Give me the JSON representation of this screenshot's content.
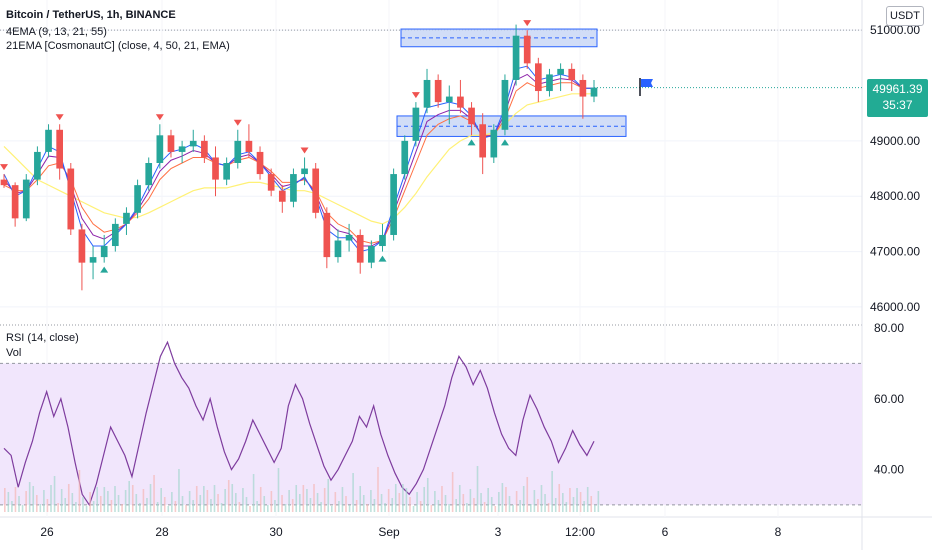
{
  "header": {
    "symbol": "Bitcoin / TetherUS, 1h, BINANCE",
    "ind1": "4EMA (9, 13, 21, 55)",
    "ind2": "21EMA [CosmonautC] (close, 4, 50, 21, EMA)",
    "ind3": "RSI (14, close)",
    "ind4": "Vol"
  },
  "currency": "USDT",
  "price_tag": {
    "value": "49961.39",
    "countdown": "35:37"
  },
  "colors": {
    "up": "#26a69a",
    "down": "#ef5350",
    "rsi_line": "#7e3c9e",
    "rsi_band": "#f1e6fc",
    "ema1": "#2962ff",
    "ema2": "#8e24aa",
    "ema3": "#ff7043",
    "ema4": "#fff176",
    "zone_fill": "#c5d5f5",
    "zone_border": "#2962ff",
    "flag": "#2962ff"
  },
  "chart_data": [
    {
      "type": "candlestick",
      "title": "Bitcoin / TetherUS, 1h, BINANCE",
      "ylim": [
        45800,
        51400
      ],
      "y_ticks": [
        "51000.00",
        "49000.00",
        "48000.00",
        "47000.00",
        "46000.00"
      ],
      "x_tick_labels": [
        "26",
        "28",
        "30",
        "Sep",
        "3",
        "12:00",
        "6",
        "8"
      ],
      "last_price": 49961.39,
      "resistance_zone": [
        50700,
        51020
      ],
      "support_zone": [
        49080,
        49450
      ],
      "candles": [
        [
          48300,
          48400,
          48150,
          48200
        ],
        [
          48200,
          48250,
          47450,
          47600
        ],
        [
          47600,
          48400,
          47550,
          48300
        ],
        [
          48300,
          48900,
          48200,
          48800
        ],
        [
          48800,
          49300,
          48700,
          49200
        ],
        [
          49200,
          49300,
          48300,
          48500
        ],
        [
          48500,
          48600,
          47300,
          47400
        ],
        [
          47400,
          47500,
          46300,
          46800
        ],
        [
          46800,
          47100,
          46500,
          46900
        ],
        [
          46900,
          47300,
          46800,
          47100
        ],
        [
          47100,
          47600,
          47000,
          47500
        ],
        [
          47500,
          47800,
          47300,
          47700
        ],
        [
          47700,
          48300,
          47600,
          48200
        ],
        [
          48200,
          48700,
          48100,
          48600
        ],
        [
          48600,
          49300,
          48500,
          49100
        ],
        [
          49100,
          49200,
          48700,
          48800
        ],
        [
          48800,
          49000,
          48600,
          48900
        ],
        [
          48900,
          49200,
          48800,
          49000
        ],
        [
          49000,
          49100,
          48600,
          48700
        ],
        [
          48700,
          48900,
          48000,
          48300
        ],
        [
          48300,
          48700,
          48200,
          48600
        ],
        [
          48600,
          49200,
          48500,
          49000
        ],
        [
          49000,
          49300,
          48700,
          48800
        ],
        [
          48800,
          48900,
          48300,
          48400
        ],
        [
          48400,
          48500,
          48000,
          48100
        ],
        [
          48100,
          48200,
          47700,
          47900
        ],
        [
          47900,
          48500,
          47800,
          48400
        ],
        [
          48400,
          48700,
          48200,
          48500
        ],
        [
          48500,
          48600,
          47600,
          47700
        ],
        [
          47700,
          47800,
          46700,
          46900
        ],
        [
          46900,
          47400,
          46800,
          47200
        ],
        [
          47200,
          47500,
          47000,
          47300
        ],
        [
          47300,
          47400,
          46600,
          46800
        ],
        [
          46800,
          47200,
          46700,
          47100
        ],
        [
          47100,
          47500,
          47000,
          47300
        ],
        [
          47300,
          48500,
          47200,
          48400
        ],
        [
          48400,
          49100,
          48300,
          49000
        ],
        [
          49000,
          49700,
          48900,
          49600
        ],
        [
          49600,
          50300,
          49500,
          50100
        ],
        [
          50100,
          50200,
          49600,
          49700
        ],
        [
          49700,
          50000,
          49300,
          49800
        ],
        [
          49800,
          50100,
          49500,
          49600
        ],
        [
          49600,
          49700,
          49100,
          49300
        ],
        [
          49300,
          49500,
          48400,
          48700
        ],
        [
          48700,
          49300,
          48600,
          49200
        ],
        [
          49200,
          50200,
          49100,
          50100
        ],
        [
          50100,
          51100,
          50000,
          50900
        ],
        [
          50900,
          51000,
          50300,
          50400
        ],
        [
          50400,
          50500,
          49700,
          49900
        ],
        [
          49900,
          50300,
          49800,
          50200
        ],
        [
          50200,
          50400,
          49900,
          50300
        ],
        [
          50300,
          50400,
          49900,
          50100
        ],
        [
          50100,
          50200,
          49400,
          49800
        ],
        [
          49800,
          50100,
          49700,
          49961
        ]
      ],
      "ema_fast": [
        48400,
        48000,
        48100,
        48500,
        48900,
        48800,
        48100,
        47400,
        47100,
        47100,
        47300,
        47500,
        47800,
        48200,
        48600,
        48800,
        48850,
        48950,
        48850,
        48600,
        48550,
        48750,
        48800,
        48600,
        48350,
        48100,
        48200,
        48350,
        48000,
        47400,
        47250,
        47250,
        47000,
        47050,
        47200,
        47800,
        48400,
        49000,
        49600,
        49650,
        49700,
        49650,
        49450,
        49050,
        49100,
        49600,
        50300,
        50350,
        50100,
        50150,
        50200,
        50150,
        49950,
        49950
      ],
      "ema_slow": [
        48200,
        48100,
        48100,
        48300,
        48550,
        48600,
        48300,
        47800,
        47500,
        47350,
        47400,
        47500,
        47700,
        47950,
        48300,
        48500,
        48600,
        48700,
        48700,
        48600,
        48550,
        48650,
        48700,
        48600,
        48450,
        48250,
        48250,
        48300,
        48100,
        47700,
        47500,
        47400,
        47200,
        47150,
        47200,
        47600,
        48100,
        48600,
        49100,
        49300,
        49400,
        49450,
        49350,
        49100,
        49100,
        49400,
        49900,
        50050,
        49950,
        50000,
        50050,
        50050,
        49950,
        49950
      ],
      "ema_55": [
        48900,
        48700,
        48500,
        48300,
        48200,
        48100,
        48000,
        47900,
        47800,
        47700,
        47650,
        47600,
        47620,
        47700,
        47800,
        47900,
        48000,
        48100,
        48150,
        48150,
        48150,
        48200,
        48250,
        48250,
        48200,
        48150,
        48100,
        48100,
        48050,
        47950,
        47850,
        47750,
        47650,
        47550,
        47500,
        47600,
        47800,
        48050,
        48350,
        48600,
        48850,
        49000,
        49100,
        49100,
        49150,
        49300,
        49500,
        49650,
        49700,
        49750,
        49800,
        49850,
        49850,
        49850
      ]
    },
    {
      "type": "line",
      "title": "RSI (14, close)",
      "ylim": [
        28,
        80
      ],
      "y_ticks": [
        "80.00",
        "60.00",
        "40.00"
      ],
      "band": [
        30,
        70
      ],
      "series": [
        {
          "values": [
            46,
            44,
            35,
            42,
            48,
            56,
            62,
            55,
            60,
            52,
            42,
            33,
            30,
            36,
            44,
            52,
            48,
            44,
            38,
            47,
            56,
            64,
            72,
            76,
            70,
            66,
            63,
            58,
            54,
            60,
            52,
            45,
            40,
            43,
            48,
            54,
            50,
            46,
            42,
            46,
            58,
            64,
            60,
            53,
            47,
            41,
            37,
            40,
            44,
            48,
            55,
            52,
            58,
            50,
            44,
            39,
            35,
            33,
            36,
            40,
            46,
            52,
            58,
            66,
            72,
            69,
            64,
            68,
            63,
            56,
            50,
            46,
            44,
            54,
            61,
            57,
            52,
            48,
            42,
            46,
            51,
            47,
            44,
            48
          ]
        }
      ]
    }
  ]
}
